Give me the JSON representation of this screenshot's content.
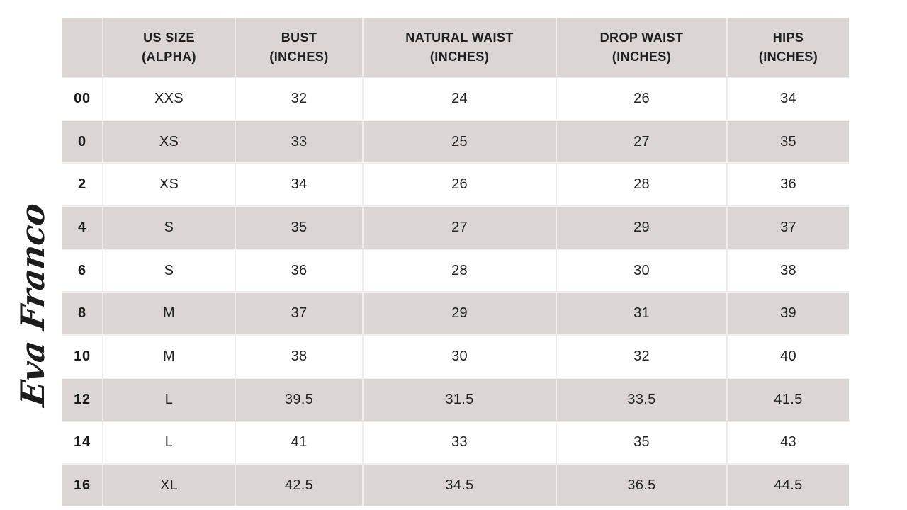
{
  "brand": {
    "logo_text": "Eva Franco"
  },
  "table": {
    "headers": [
      "",
      "US SIZE\n(ALPHA)",
      "BUST\n(INCHES)",
      "NATURAL WAIST\n(INCHES)",
      "DROP WAIST\n(INCHES)",
      "HIPS\n(INCHES)"
    ]
  },
  "chart_data": {
    "type": "table",
    "columns": [
      "",
      "US SIZE (ALPHA)",
      "BUST (INCHES)",
      "NATURAL WAIST (INCHES)",
      "DROP WAIST (INCHES)",
      "HIPS (INCHES)"
    ],
    "rows": [
      [
        "00",
        "XXS",
        32,
        24,
        26,
        34
      ],
      [
        "0",
        "XS",
        33,
        25,
        27,
        35
      ],
      [
        "2",
        "XS",
        34,
        26,
        28,
        36
      ],
      [
        "4",
        "S",
        35,
        27,
        29,
        37
      ],
      [
        "6",
        "S",
        36,
        28,
        30,
        38
      ],
      [
        "8",
        "M",
        37,
        29,
        31,
        39
      ],
      [
        "10",
        "M",
        38,
        30,
        32,
        40
      ],
      [
        "12",
        "L",
        39.5,
        31.5,
        33.5,
        41.5
      ],
      [
        "14",
        "L",
        41,
        33,
        35,
        43
      ],
      [
        "16",
        "XL",
        42.5,
        34.5,
        36.5,
        44.5
      ]
    ]
  },
  "colors": {
    "header_bg": "#dbd6d4",
    "row_stripe": "#dbd6d4",
    "row_plain": "#ffffff",
    "grid_line": "#eeecec",
    "text": "#1f1f1f",
    "background": "#ffffff"
  }
}
